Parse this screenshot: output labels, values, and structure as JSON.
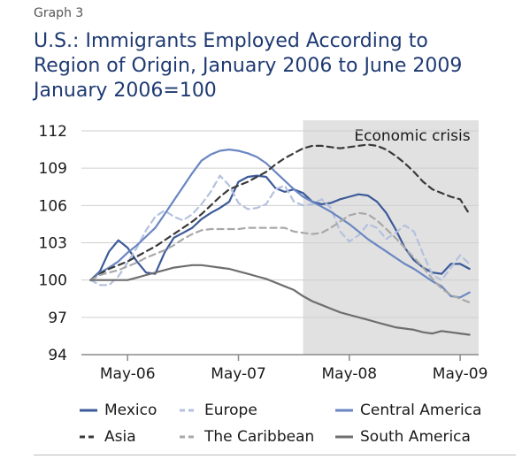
{
  "header": {
    "graph_label": "Graph 3",
    "title_lines": [
      "U.S.: Immigrants Employed According to",
      "Region of Origin, January 2006 to June 2009",
      "January 2006=100"
    ]
  },
  "chart_data": {
    "type": "line",
    "title": "U.S.: Immigrants Employed According to Region of Origin, January 2006 to June 2009 January 2006=100",
    "annotation": "Economic crisis",
    "shaded_region": [
      "2007-12",
      "2009-06"
    ],
    "x_tick_labels": [
      "May-06",
      "May-07",
      "May-08",
      "May-09"
    ],
    "x_ticks": [
      "2006-05",
      "2007-05",
      "2008-05",
      "2009-05"
    ],
    "y_ticks": [
      94,
      97,
      100,
      103,
      106,
      109,
      112
    ],
    "ylim": [
      94,
      112
    ],
    "x_range": [
      "2005-12",
      "2009-07"
    ],
    "x": [
      "2006-01",
      "2006-02",
      "2006-03",
      "2006-04",
      "2006-05",
      "2006-06",
      "2006-07",
      "2006-08",
      "2006-09",
      "2006-10",
      "2006-11",
      "2006-12",
      "2007-01",
      "2007-02",
      "2007-03",
      "2007-04",
      "2007-05",
      "2007-06",
      "2007-07",
      "2007-08",
      "2007-09",
      "2007-10",
      "2007-11",
      "2007-12",
      "2008-01",
      "2008-02",
      "2008-03",
      "2008-04",
      "2008-05",
      "2008-06",
      "2008-07",
      "2008-08",
      "2008-09",
      "2008-10",
      "2008-11",
      "2008-12",
      "2009-01",
      "2009-02",
      "2009-03",
      "2009-04",
      "2009-05",
      "2009-06"
    ],
    "grid": true,
    "legend_position": "bottom",
    "series": [
      {
        "name": "Mexico",
        "color": "#3c5a99",
        "dash": "solid",
        "values": [
          100,
          100.7,
          102.3,
          103.2,
          102.6,
          101.5,
          100.6,
          100.5,
          102.2,
          103.4,
          103.8,
          104.2,
          104.9,
          105.4,
          105.8,
          106.3,
          107.9,
          108.3,
          108.4,
          108.3,
          107.4,
          107.1,
          107.3,
          107.0,
          106.3,
          106.1,
          106.2,
          106.5,
          106.7,
          106.9,
          106.8,
          106.3,
          105.4,
          104.1,
          102.6,
          101.6,
          101.0,
          100.6,
          100.5,
          101.3,
          101.3,
          100.9
        ]
      },
      {
        "name": "Europe",
        "color": "#b4c1de",
        "dash": "dashed",
        "values": [
          100,
          99.6,
          99.6,
          100.3,
          101.4,
          102.6,
          104.0,
          105.1,
          105.6,
          105.1,
          104.8,
          105.3,
          106.1,
          107.1,
          108.4,
          107.6,
          106.2,
          105.7,
          105.8,
          106.1,
          107.3,
          107.6,
          106.3,
          106.0,
          106.1,
          106.5,
          105.8,
          103.9,
          103.1,
          103.6,
          104.5,
          104.2,
          103.3,
          103.8,
          104.4,
          103.9,
          102.1,
          100.4,
          100.0,
          101.0,
          102.0,
          101.3
        ]
      },
      {
        "name": "Central America",
        "color": "#6a86c2",
        "dash": "solid",
        "values": [
          100,
          100.6,
          101.0,
          101.5,
          102.2,
          102.8,
          103.5,
          104.2,
          105.3,
          106.4,
          107.5,
          108.6,
          109.6,
          110.1,
          110.4,
          110.5,
          110.4,
          110.2,
          109.9,
          109.4,
          108.7,
          108.0,
          107.3,
          106.7,
          106.3,
          105.9,
          105.5,
          105.0,
          104.5,
          103.9,
          103.3,
          102.8,
          102.3,
          101.8,
          101.3,
          100.9,
          100.4,
          99.9,
          99.5,
          98.7,
          98.6,
          99.0
        ]
      },
      {
        "name": "Asia",
        "color": "#3a3a3a",
        "dash": "dashed",
        "values": [
          100,
          100.5,
          100.9,
          101.2,
          101.5,
          101.9,
          102.3,
          102.7,
          103.2,
          103.7,
          104.2,
          104.7,
          105.3,
          106.0,
          106.7,
          107.3,
          107.6,
          107.9,
          108.3,
          108.7,
          109.3,
          109.8,
          110.2,
          110.6,
          110.8,
          110.8,
          110.7,
          110.6,
          110.7,
          110.8,
          110.9,
          110.8,
          110.5,
          110.0,
          109.4,
          108.7,
          107.9,
          107.3,
          107.0,
          106.7,
          106.5,
          105.3
        ]
      },
      {
        "name": "The Caribbean",
        "color": "#a8a8a8",
        "dash": "dashed",
        "values": [
          100,
          100.4,
          100.6,
          100.8,
          101.1,
          101.4,
          101.8,
          102.1,
          102.4,
          102.8,
          103.3,
          103.7,
          104.0,
          104.1,
          104.1,
          104.1,
          104.1,
          104.2,
          104.2,
          104.2,
          104.2,
          104.2,
          103.9,
          103.8,
          103.7,
          103.8,
          104.2,
          104.7,
          105.2,
          105.4,
          105.3,
          104.8,
          104.1,
          103.4,
          102.6,
          101.8,
          101.0,
          100.1,
          99.3,
          98.8,
          98.5,
          98.2
        ]
      },
      {
        "name": "South America",
        "color": "#6e6e6e",
        "dash": "solid",
        "values": [
          100,
          100.0,
          100.0,
          100.0,
          100.0,
          100.2,
          100.4,
          100.6,
          100.8,
          101.0,
          101.1,
          101.2,
          101.2,
          101.1,
          101.0,
          100.9,
          100.7,
          100.5,
          100.3,
          100.1,
          99.8,
          99.5,
          99.2,
          98.7,
          98.3,
          98.0,
          97.7,
          97.4,
          97.2,
          97.0,
          96.8,
          96.6,
          96.4,
          96.2,
          96.1,
          96.0,
          95.8,
          95.7,
          95.9,
          95.8,
          95.7,
          95.6
        ]
      }
    ]
  }
}
